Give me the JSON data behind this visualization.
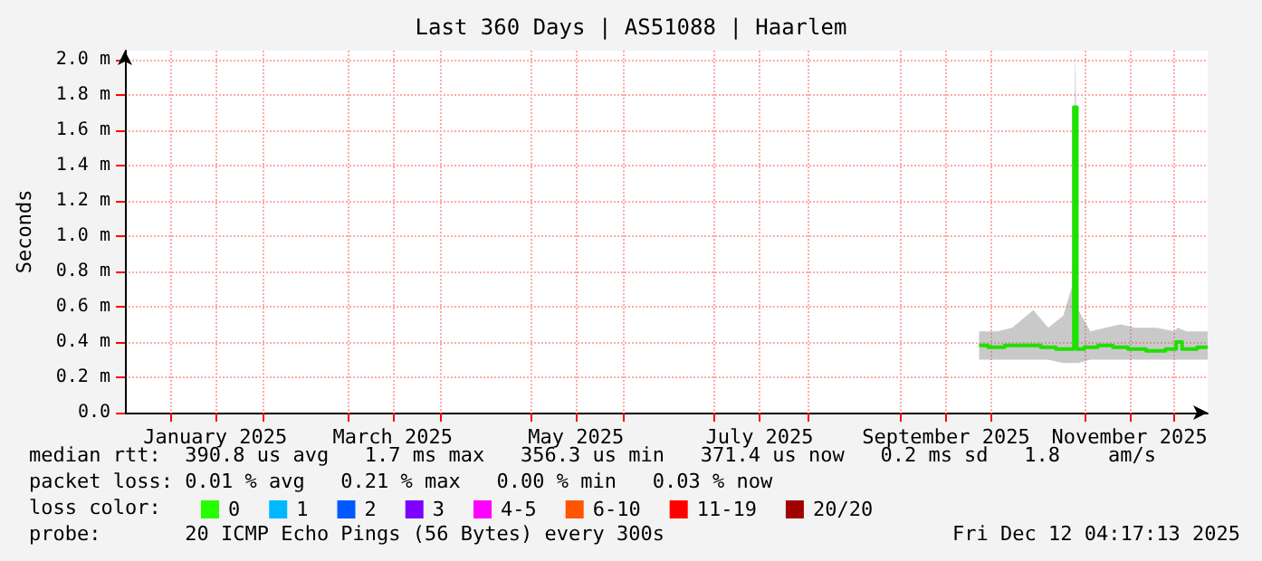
{
  "chart_data": {
    "type": "line",
    "title": "Last 360 Days | AS51088 | Haarlem",
    "ylabel": "Seconds",
    "legend_title": "loss color:",
    "legend": "bottom",
    "grid": true,
    "marker": "none",
    "line_style": "solid",
    "xlim": [
      "2024-12-17",
      "2025-12-12"
    ],
    "xticks": [
      {
        "value": "2025-01-01",
        "label": null
      },
      {
        "value": "2025-01-16",
        "label": "January 2025"
      },
      {
        "value": "2025-02-01",
        "label": null
      },
      {
        "value": "2025-03-01",
        "label": null
      },
      {
        "value": "2025-03-16",
        "label": "March 2025"
      },
      {
        "value": "2025-04-01",
        "label": null
      },
      {
        "value": "2025-05-01",
        "label": null
      },
      {
        "value": "2025-05-16",
        "label": "May 2025"
      },
      {
        "value": "2025-06-01",
        "label": null
      },
      {
        "value": "2025-07-01",
        "label": null
      },
      {
        "value": "2025-07-16",
        "label": "July 2025"
      },
      {
        "value": "2025-08-01",
        "label": null
      },
      {
        "value": "2025-09-01",
        "label": null
      },
      {
        "value": "2025-09-16",
        "label": "September 2025"
      },
      {
        "value": "2025-10-01",
        "label": null
      },
      {
        "value": "2025-11-01",
        "label": null
      },
      {
        "value": "2025-11-16",
        "label": "November 2025"
      },
      {
        "value": "2025-12-01",
        "label": null
      }
    ],
    "ylim": [
      0,
      2.05
    ],
    "yticks": [
      {
        "value": 0,
        "label": "0.0"
      },
      {
        "value": 0.2,
        "label": "0.2 m"
      },
      {
        "value": 0.4,
        "label": "0.4 m"
      },
      {
        "value": 0.6,
        "label": "0.6 m"
      },
      {
        "value": 0.8,
        "label": "0.8 m"
      },
      {
        "value": 1,
        "label": "1.0 m"
      },
      {
        "value": 1.2,
        "label": "1.2 m"
      },
      {
        "value": 1.4,
        "label": "1.4 m"
      },
      {
        "value": 1.6,
        "label": "1.6 m"
      },
      {
        "value": 1.8,
        "label": "1.8 m"
      },
      {
        "value": 2,
        "label": "2.0 m"
      }
    ],
    "series": [
      {
        "color": "#20e000",
        "x": [
          "2025-09-27",
          "2025-10-03",
          "2025-10-08",
          "2025-10-15",
          "2025-10-20",
          "2025-10-25",
          "2025-10-28",
          "2025-10-29",
          "2025-10-30",
          "2025-11-03",
          "2025-11-08",
          "2025-11-13",
          "2025-11-18",
          "2025-11-25",
          "2025-12-01",
          "2025-12-02",
          "2025-12-05",
          "2025-12-12"
        ],
        "values": [
          0.38,
          0.37,
          0.38,
          0.38,
          0.37,
          0.36,
          0.36,
          1.73,
          0.36,
          0.37,
          0.38,
          0.37,
          0.36,
          0.35,
          0.36,
          0.4,
          0.36,
          0.37
        ],
        "lower": [
          0.3,
          0.3,
          0.3,
          0.3,
          0.3,
          0.28,
          0.28,
          0.28,
          0.28,
          0.3,
          0.3,
          0.3,
          0.3,
          0.3,
          0.3,
          0.3,
          0.3,
          0.3
        ],
        "upper": [
          0.46,
          0.46,
          0.48,
          0.58,
          0.48,
          0.55,
          0.72,
          2.05,
          0.58,
          0.46,
          0.48,
          0.5,
          0.48,
          0.48,
          0.46,
          0.48,
          0.46,
          0.46
        ]
      },
      {
        "name": "0",
        "color": "#26ff00"
      },
      {
        "name": "1",
        "color": "#00b8ff"
      },
      {
        "name": "2",
        "color": "#0059ff"
      },
      {
        "name": "3",
        "color": "#7e00ff"
      },
      {
        "name": "4-5",
        "color": "#ff00ff"
      },
      {
        "name": "6-10",
        "color": "#ff5500"
      },
      {
        "name": "11-19",
        "color": "#ff0000"
      },
      {
        "name": "20/20",
        "color": "#a10000"
      }
    ],
    "annotations": [
      "median rtt:  390.8 us avg   1.7 ms max   356.3 us min   371.4 us now   0.2 ms sd   1.8    am/s",
      "packet loss: 0.01 % avg   0.21 % max   0.00 % min   0.03 % now",
      "probe:       20 ICMP Echo Pings (56 Bytes) every 300s",
      "Fri Dec 12 04:17:13 2025"
    ]
  }
}
